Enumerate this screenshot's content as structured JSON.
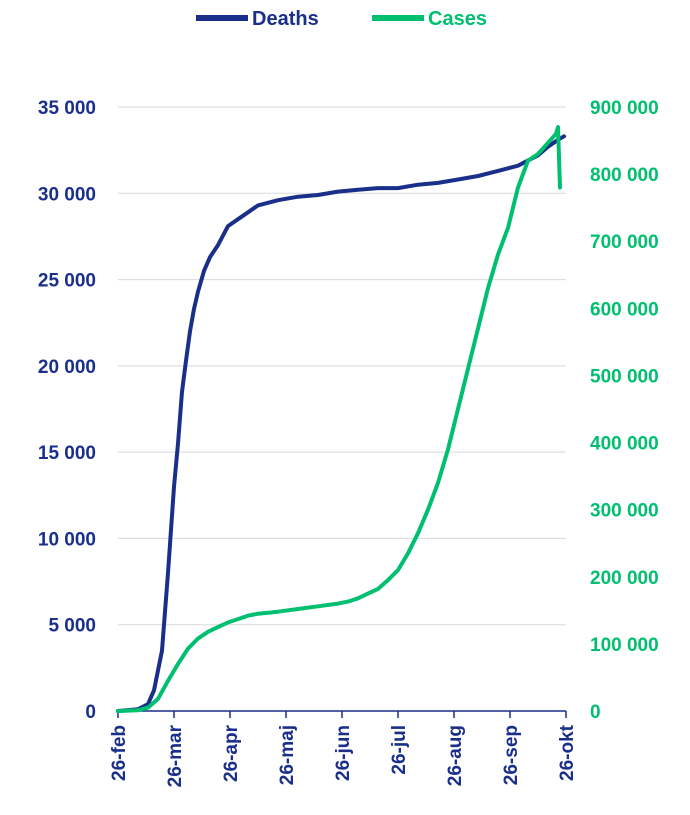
{
  "chart_data": {
    "type": "line",
    "legend": {
      "placement": "top"
    },
    "x_tick_labels": [
      "26-feb",
      "26-mar",
      "26-apr",
      "26-maj",
      "26-jun",
      "26-jul",
      "26-aug",
      "26-sep",
      "26-okt"
    ],
    "y_left": {
      "ylim": [
        0,
        35000
      ],
      "tick_labels": [
        "0",
        "5 000",
        "10 000",
        "15 000",
        "20 000",
        "25 000",
        "30 000",
        "35 000"
      ]
    },
    "y_right": {
      "ylim": [
        0,
        900000
      ],
      "tick_labels": [
        "0",
        "100 000",
        "200 000",
        "300 000",
        "400 000",
        "500 000",
        "600 000",
        "700 000",
        "800 000",
        "900 000"
      ]
    },
    "grid": true,
    "series": [
      {
        "name": "Deaths",
        "axis": "left",
        "color": "#1a2f8a",
        "x": [
          0,
          10,
          15,
          18,
          22,
          25,
          28,
          30,
          32,
          34,
          36,
          38,
          40,
          43,
          46,
          50,
          55,
          60,
          65,
          70,
          80,
          90,
          100,
          110,
          120,
          130,
          140,
          150,
          160,
          170,
          180,
          190,
          200,
          210,
          215,
          220,
          223
        ],
        "y": [
          0,
          100,
          400,
          1200,
          3500,
          8000,
          13000,
          15500,
          18500,
          20300,
          22000,
          23300,
          24300,
          25500,
          26300,
          27000,
          28100,
          28500,
          28900,
          29300,
          29600,
          29800,
          29900,
          30100,
          30200,
          30300,
          30300,
          30500,
          30600,
          30800,
          31000,
          31300,
          31600,
          32200,
          32700,
          33100,
          33300
        ]
      },
      {
        "name": "Cases",
        "axis": "right",
        "color": "#00c070",
        "x": [
          0,
          10,
          15,
          20,
          25,
          30,
          35,
          40,
          45,
          50,
          55,
          60,
          65,
          70,
          80,
          90,
          100,
          110,
          115,
          120,
          125,
          130,
          135,
          140,
          145,
          150,
          155,
          160,
          165,
          170,
          175,
          180,
          185,
          190,
          195,
          200,
          205,
          210,
          213,
          216,
          219,
          220,
          221
        ],
        "y": [
          0,
          1000,
          5000,
          18000,
          45000,
          70000,
          93000,
          108000,
          118000,
          125000,
          132000,
          137000,
          142000,
          145000,
          148000,
          152000,
          156000,
          160000,
          163000,
          168000,
          175000,
          182000,
          195000,
          210000,
          235000,
          265000,
          300000,
          340000,
          390000,
          450000,
          510000,
          570000,
          630000,
          680000,
          720000,
          780000,
          820000,
          830000,
          840000,
          850000,
          860000,
          870000,
          780000
        ]
      }
    ]
  }
}
